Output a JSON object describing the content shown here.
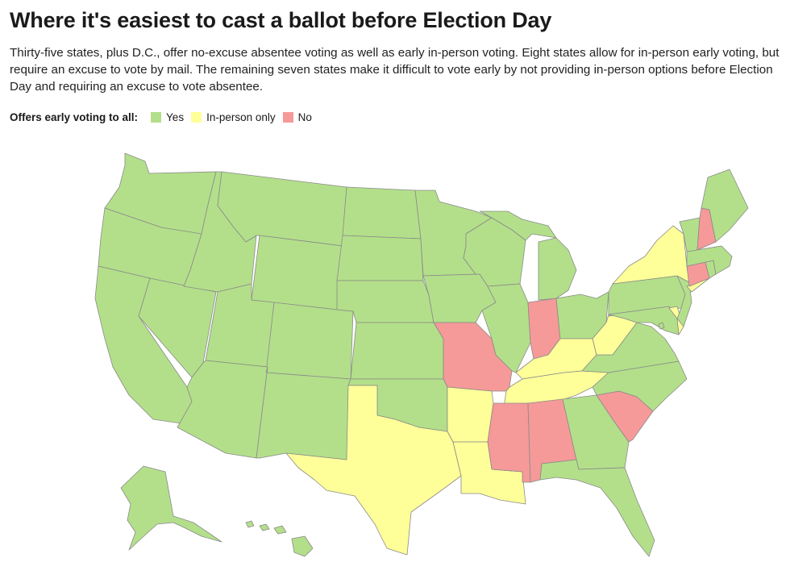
{
  "title": "Where it's easiest to cast a ballot before Election Day",
  "subtitle": "Thirty-five states, plus D.C., offer no-excuse absentee voting as well as early in-person voting. Eight states allow for in-person early voting, but require an excuse to vote by mail. The remaining seven states make it difficult to vote early by not providing in-person options before Election Day and requiring an excuse to vote absentee.",
  "legend": {
    "label": "Offers early voting to all:",
    "items": [
      {
        "key": "yes",
        "label": "Yes",
        "color": "#b3df8a"
      },
      {
        "key": "inperson",
        "label": "In-person only",
        "color": "#ffff99"
      },
      {
        "key": "no",
        "label": "No",
        "color": "#f59a98"
      }
    ]
  },
  "states": {
    "WA": "yes",
    "OR": "yes",
    "CA": "yes",
    "NV": "yes",
    "ID": "yes",
    "MT": "yes",
    "WY": "yes",
    "UT": "yes",
    "AZ": "yes",
    "CO": "yes",
    "NM": "yes",
    "ND": "yes",
    "SD": "yes",
    "NE": "yes",
    "KS": "yes",
    "OK": "yes",
    "TX": "inperson",
    "MN": "yes",
    "IA": "yes",
    "MO": "no",
    "AR": "inperson",
    "LA": "inperson",
    "WI": "yes",
    "IL": "yes",
    "MI": "yes",
    "IN": "no",
    "OH": "yes",
    "KY": "inperson",
    "TN": "inperson",
    "MS": "no",
    "AL": "no",
    "GA": "yes",
    "FL": "yes",
    "SC": "no",
    "NC": "yes",
    "VA": "yes",
    "WV": "inperson",
    "MD": "yes",
    "DE": "inperson",
    "NJ": "yes",
    "PA": "yes",
    "NY": "inperson",
    "CT": "no",
    "RI": "yes",
    "MA": "yes",
    "VT": "yes",
    "NH": "no",
    "ME": "yes",
    "AK": "yes",
    "HI": "yes",
    "DC": "yes"
  }
}
